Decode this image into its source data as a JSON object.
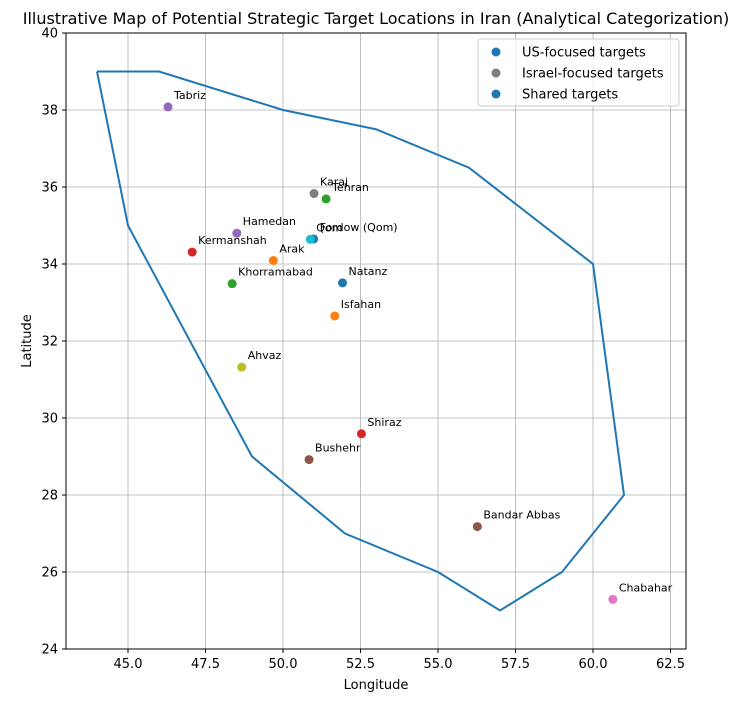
{
  "chart_data": {
    "type": "scatter",
    "title": "Illustrative Map of Potential Strategic Target Locations in Iran (Analytical Categorization)",
    "xlabel": "Longitude",
    "ylabel": "Latitude",
    "xlim": [
      43,
      63
    ],
    "ylim": [
      24,
      40
    ],
    "xticks": [
      "45.0",
      "47.5",
      "50.0",
      "52.5",
      "55.0",
      "57.5",
      "60.0",
      "62.5"
    ],
    "yticks": [
      "24",
      "26",
      "28",
      "30",
      "32",
      "34",
      "36",
      "38",
      "40"
    ],
    "grid": true,
    "legend_position": "top-right",
    "legend": [
      {
        "label": "US-focused targets",
        "color": "#1f77b4"
      },
      {
        "label": "Israel-focused targets",
        "color": "#7f7f7f"
      },
      {
        "label": "Shared targets",
        "color": "#1f77b4"
      }
    ],
    "boundary": {
      "color": "#1f77b4",
      "lon": [
        44,
        46,
        50,
        53,
        56,
        60,
        61,
        59,
        57,
        55,
        52,
        49,
        45,
        44
      ],
      "lat": [
        39,
        39,
        38,
        37.5,
        36.5,
        34,
        28,
        26,
        25,
        26,
        27,
        29,
        35,
        39
      ]
    },
    "points": [
      {
        "name": "Tabriz",
        "lon": 46.29,
        "lat": 38.08,
        "color": "#9467bd"
      },
      {
        "name": "Karaj",
        "lon": 51.0,
        "lat": 35.83,
        "color": "#7f7f7f"
      },
      {
        "name": "Tehran",
        "lon": 51.39,
        "lat": 35.69,
        "color": "#2ca02c"
      },
      {
        "name": "Hamedan",
        "lon": 48.51,
        "lat": 34.8,
        "color": "#9467bd"
      },
      {
        "name": "Fordow (Qom)",
        "lon": 50.99,
        "lat": 34.65,
        "color": "#1f77b4"
      },
      {
        "name": "Qom",
        "lon": 50.88,
        "lat": 34.64,
        "color": "#17becf"
      },
      {
        "name": "Kermanshah",
        "lon": 47.07,
        "lat": 34.31,
        "color": "#d62728"
      },
      {
        "name": "Arak",
        "lon": 49.69,
        "lat": 34.09,
        "color": "#ff7f0e"
      },
      {
        "name": "Natanz",
        "lon": 51.92,
        "lat": 33.51,
        "color": "#1f77b4"
      },
      {
        "name": "Khorramabad",
        "lon": 48.36,
        "lat": 33.49,
        "color": "#2ca02c"
      },
      {
        "name": "Isfahan",
        "lon": 51.67,
        "lat": 32.65,
        "color": "#ff7f0e"
      },
      {
        "name": "Ahvaz",
        "lon": 48.67,
        "lat": 31.32,
        "color": "#bcbd22"
      },
      {
        "name": "Shiraz",
        "lon": 52.53,
        "lat": 29.59,
        "color": "#d62728"
      },
      {
        "name": "Bushehr",
        "lon": 50.84,
        "lat": 28.92,
        "color": "#8c564b"
      },
      {
        "name": "Bandar Abbas",
        "lon": 56.27,
        "lat": 27.18,
        "color": "#8c564b"
      },
      {
        "name": "Chabahar",
        "lon": 60.64,
        "lat": 25.29,
        "color": "#e377c2"
      }
    ]
  }
}
